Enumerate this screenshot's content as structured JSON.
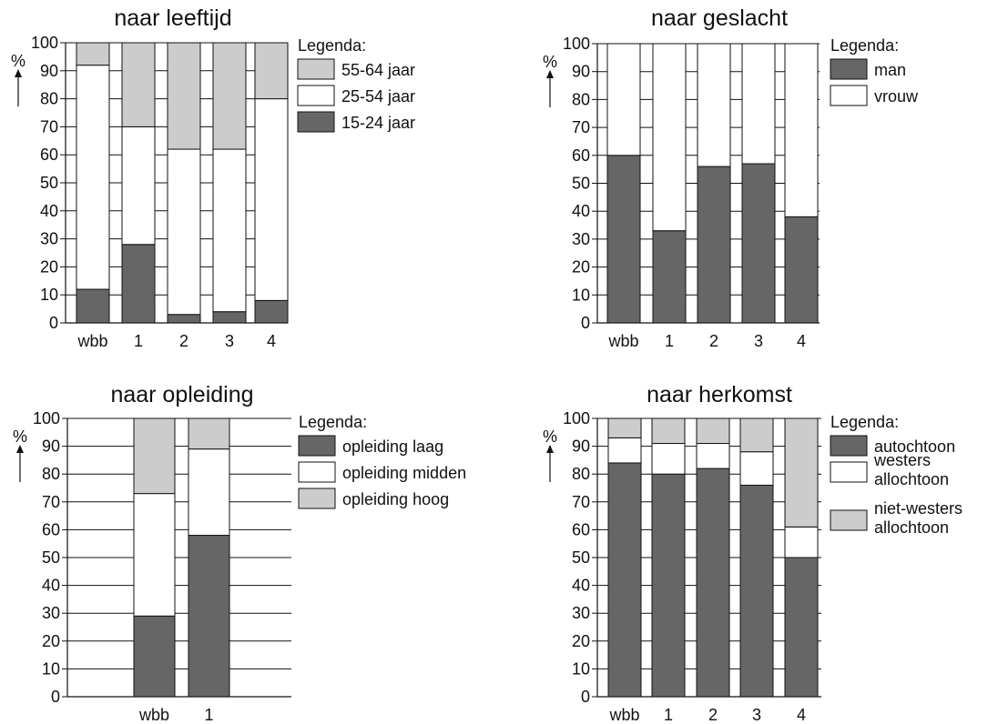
{
  "colors": {
    "dark": "#666666",
    "white": "#ffffff",
    "light": "#cccccc"
  },
  "chart_data": [
    {
      "type": "bar",
      "stacked": true,
      "title": "naar leeftijd",
      "ylabel": "%",
      "ylim": [
        0,
        100
      ],
      "yticks": [
        "0",
        "10",
        "20",
        "30",
        "40",
        "50",
        "60",
        "70",
        "80",
        "90",
        "100"
      ],
      "categories": [
        "wbb",
        "1",
        "2",
        "3",
        "4"
      ],
      "legend_title": "Legenda:",
      "legend": [
        "55-64 jaar",
        "25-54 jaar",
        "15-24 jaar"
      ],
      "series": [
        {
          "name": "15-24 jaar",
          "color": "dark",
          "values": [
            12,
            28,
            3,
            4,
            8
          ]
        },
        {
          "name": "25-54 jaar",
          "color": "white",
          "values": [
            80,
            42,
            59,
            58,
            72
          ]
        },
        {
          "name": "55-64 jaar",
          "color": "light",
          "values": [
            8,
            30,
            38,
            38,
            20
          ]
        }
      ]
    },
    {
      "type": "bar",
      "stacked": true,
      "title": "naar geslacht",
      "ylabel": "%",
      "ylim": [
        0,
        100
      ],
      "yticks": [
        "0",
        "10",
        "20",
        "30",
        "40",
        "50",
        "60",
        "70",
        "80",
        "90",
        "100"
      ],
      "categories": [
        "wbb",
        "1",
        "2",
        "3",
        "4"
      ],
      "legend_title": "Legenda:",
      "legend": [
        "man",
        "vrouw"
      ],
      "series": [
        {
          "name": "man",
          "color": "dark",
          "values": [
            60,
            33,
            56,
            57,
            38
          ]
        },
        {
          "name": "vrouw",
          "color": "white",
          "values": [
            40,
            67,
            44,
            43,
            62
          ]
        }
      ]
    },
    {
      "type": "bar",
      "stacked": true,
      "title": "naar opleiding",
      "ylabel": "%",
      "ylim": [
        0,
        100
      ],
      "yticks": [
        "0",
        "10",
        "20",
        "30",
        "40",
        "50",
        "60",
        "70",
        "80",
        "90",
        "100"
      ],
      "categories": [
        "wbb",
        "1"
      ],
      "legend_title": "Legenda:",
      "legend": [
        "opleiding laag",
        "opleiding midden",
        "opleiding hoog"
      ],
      "series": [
        {
          "name": "opleiding laag",
          "color": "dark",
          "values": [
            29,
            58
          ]
        },
        {
          "name": "opleiding midden",
          "color": "white",
          "values": [
            44,
            31
          ]
        },
        {
          "name": "opleiding hoog",
          "color": "light",
          "values": [
            27,
            11
          ]
        }
      ]
    },
    {
      "type": "bar",
      "stacked": true,
      "title": "naar herkomst",
      "ylabel": "%",
      "ylim": [
        0,
        100
      ],
      "yticks": [
        "0",
        "10",
        "20",
        "30",
        "40",
        "50",
        "60",
        "70",
        "80",
        "90",
        "100"
      ],
      "categories": [
        "wbb",
        "1",
        "2",
        "3",
        "4"
      ],
      "legend_title": "Legenda:",
      "legend": [
        "autochtoon",
        "westers allochtoon",
        "niet-westers allochtoon"
      ],
      "series": [
        {
          "name": "autochtoon",
          "color": "dark",
          "values": [
            84,
            80,
            82,
            76,
            50
          ]
        },
        {
          "name": "westers allochtoon",
          "color": "white",
          "values": [
            9,
            11,
            9,
            12,
            11
          ]
        },
        {
          "name": "niet-westers allochtoon",
          "color": "light",
          "values": [
            7,
            9,
            9,
            12,
            39
          ]
        }
      ]
    }
  ]
}
